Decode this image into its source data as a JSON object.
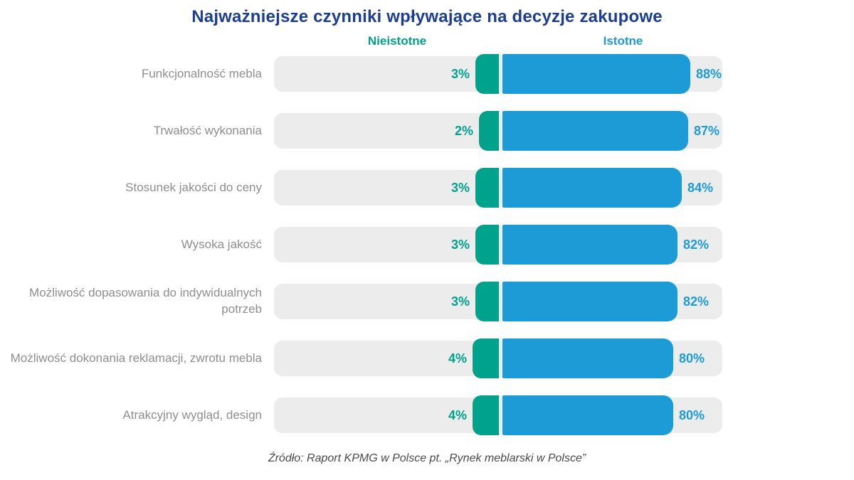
{
  "title": "Najważniejsze czynniki wpływające na decyzje zakupowe",
  "legend": {
    "left_label": "Nieistotne",
    "right_label": "Istotne"
  },
  "source": "Źródło: Raport KPMG w Polsce pt. „Rynek meblarski w Polsce”",
  "colors": {
    "title": "#1b3e94",
    "nieistotne": "#00a28c",
    "istotne": "#1d9bd6",
    "track": "#ececec",
    "category_label": "#8e8e8e",
    "source_text": "#4a4a4a"
  },
  "chart_data": {
    "type": "bar",
    "orientation": "horizontal",
    "title": "Najważniejsze czynniki wpływające na decyzje zakupowe",
    "unit": "%",
    "value_labels": true,
    "legend_position": "top",
    "grid": false,
    "categories": [
      "Funkcjonalność mebla",
      "Trwałość wykonania",
      "Stosunek jakości do ceny",
      "Wysoka jakość",
      "Możliwość dopasowania do indywidualnych potrzeb",
      "Możliwość dokonania reklamacji, zwrotu mebla",
      "Atrakcyjny wygląd, design"
    ],
    "series": [
      {
        "name": "Nieistotne",
        "color": "#00a28c",
        "values": [
          3,
          2,
          3,
          3,
          3,
          4,
          4
        ]
      },
      {
        "name": "Istotne",
        "color": "#1d9bd6",
        "values": [
          88,
          87,
          84,
          82,
          82,
          80,
          80
        ]
      }
    ]
  }
}
